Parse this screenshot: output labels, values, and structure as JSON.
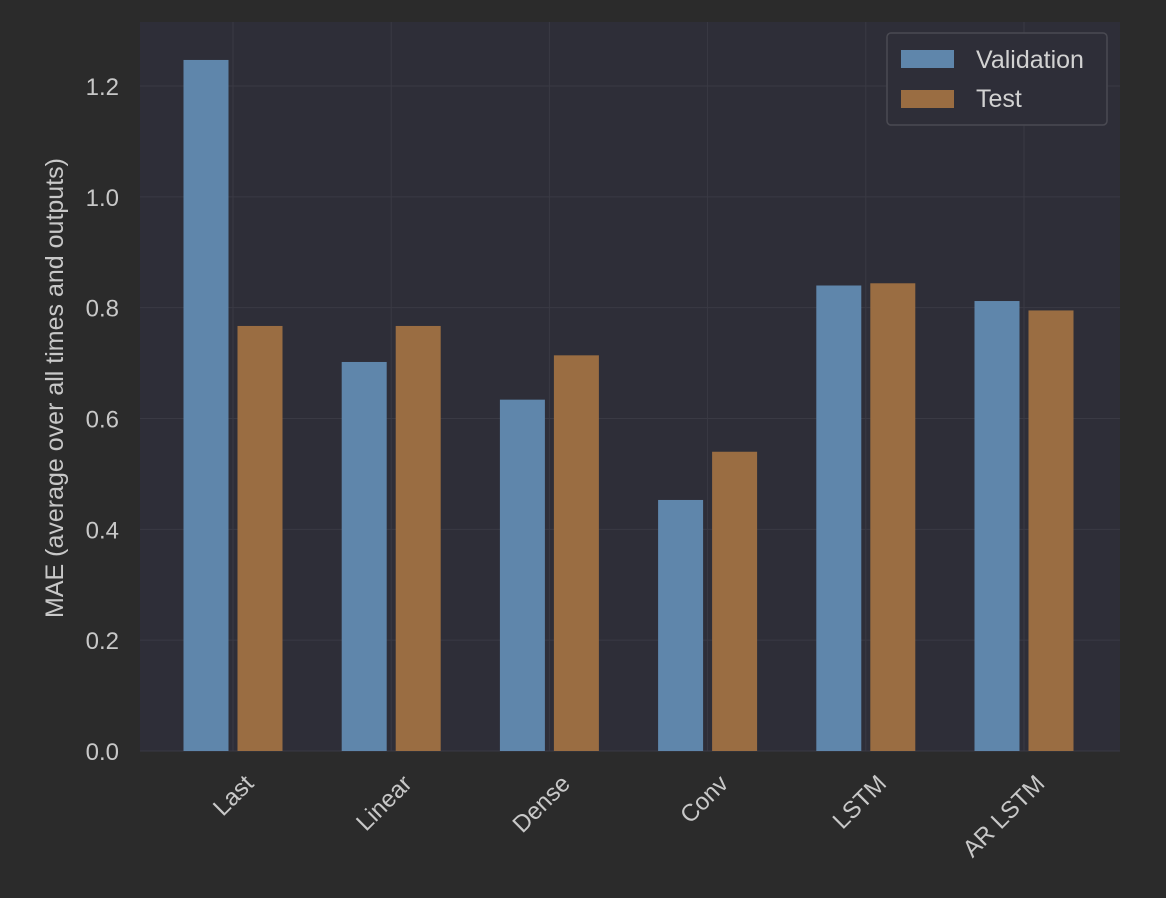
{
  "chart_data": {
    "type": "bar",
    "categories": [
      "Last",
      "Linear",
      "Dense",
      "Conv",
      "LSTM",
      "AR LSTM"
    ],
    "series": [
      {
        "name": "Validation",
        "color": "#5f86ab",
        "values": [
          1.247,
          0.702,
          0.634,
          0.453,
          0.84,
          0.812
        ]
      },
      {
        "name": "Test",
        "color": "#9a6d42",
        "values": [
          0.767,
          0.767,
          0.714,
          0.54,
          0.844,
          0.795
        ]
      }
    ],
    "title": "",
    "xlabel": "",
    "ylabel": "MAE (average over all times and outputs)",
    "ylim": [
      0,
      1.3
    ],
    "yticks": [
      0.0,
      0.2,
      0.4,
      0.6,
      0.8,
      1.0,
      1.2
    ],
    "ytick_labels": [
      "0.0",
      "0.2",
      "0.4",
      "0.6",
      "0.8",
      "1.0",
      "1.2"
    ],
    "xtick_rotation": 45,
    "grid": true,
    "legend_position": "top-right",
    "colors": {
      "background": "#2b2b2b",
      "plot_background": "#2e2e38",
      "grid": "#3a3a44",
      "text": "#c8c8c8"
    }
  }
}
